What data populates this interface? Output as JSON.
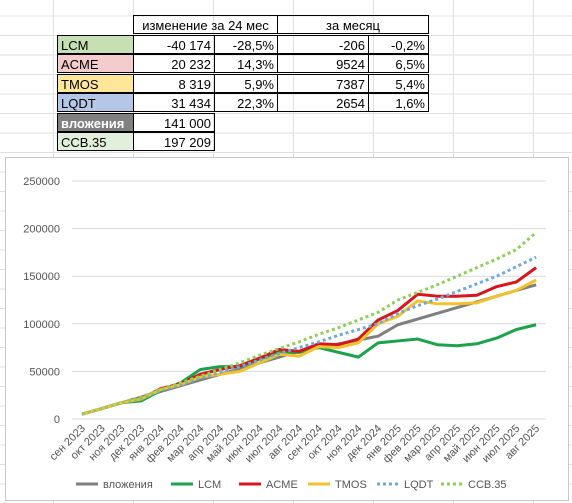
{
  "table": {
    "header": [
      "изменение за 24 мес",
      "за месяц"
    ],
    "rows": [
      {
        "label": "LCM",
        "color": "#c6e0b4",
        "text_color": "#000000",
        "cells": [
          "-40 174",
          "-28,5%",
          "-206",
          "-0,2%"
        ]
      },
      {
        "label": "ACME",
        "color": "#f4cccc",
        "text_color": "#000000",
        "cells": [
          "20 232",
          "14,3%",
          "9524",
          "6,5%"
        ]
      },
      {
        "label": "TMOS",
        "color": "#ffe699",
        "text_color": "#000000",
        "cells": [
          "8 319",
          "5,9%",
          "7387",
          "5,4%"
        ]
      },
      {
        "label": "LQDT",
        "color": "#b4c7e7",
        "text_color": "#000000",
        "cells": [
          "31 434",
          "22,3%",
          "2654",
          "1,6%"
        ]
      },
      {
        "label": "вложения",
        "color": "#808080",
        "text_color": "#ffffff",
        "cells": [
          "141 000"
        ]
      },
      {
        "label": "ССВ.35",
        "color": "#e2efda",
        "text_color": "#000000",
        "cells": [
          "197 209"
        ]
      }
    ]
  },
  "chart_data": {
    "type": "line",
    "categories": [
      "сен 2023",
      "окт 2023",
      "ноя 2023",
      "дек 2023",
      "янв 2024",
      "фев 2024",
      "мар 2024",
      "апр 2024",
      "май 2024",
      "июн 2024",
      "июл 2024",
      "авг 2024",
      "сен 2024",
      "окт 2024",
      "ноя 2024",
      "дек 2024",
      "янв 2025",
      "фев 2025",
      "мар 2025",
      "апр 2025",
      "май 2025",
      "июн 2025",
      "июл 2025",
      "авг 2025"
    ],
    "ylim": [
      0,
      250000
    ],
    "yticks": [
      0,
      50000,
      100000,
      150000,
      200000,
      250000
    ],
    "series": [
      {
        "name": "вложения",
        "color": "#7f7f7f",
        "dashed": false,
        "values": [
          5000,
          11000,
          17000,
          23000,
          29000,
          35000,
          41000,
          47000,
          53000,
          59000,
          65000,
          71000,
          75000,
          79000,
          83000,
          87000,
          99000,
          105000,
          111000,
          117000,
          123000,
          129000,
          135000,
          141000
        ]
      },
      {
        "name": "LCM",
        "color": "#1aa34a",
        "dashed": false,
        "values": [
          5000,
          11000,
          17000,
          19000,
          30000,
          38000,
          52000,
          55000,
          55000,
          63000,
          70000,
          70000,
          75000,
          70000,
          65000,
          80000,
          82000,
          84000,
          78000,
          77000,
          79000,
          85000,
          94000,
          99000
        ]
      },
      {
        "name": "ACME",
        "color": "#d9141b",
        "dashed": false,
        "values": [
          5000,
          11000,
          17000,
          21000,
          32000,
          37000,
          47000,
          52000,
          56000,
          64000,
          73000,
          71000,
          79000,
          78000,
          84000,
          104000,
          114000,
          131000,
          129000,
          129000,
          130000,
          139000,
          144000,
          159000
        ]
      },
      {
        "name": "TMOS",
        "color": "#f2c12e",
        "dashed": false,
        "values": [
          5000,
          11000,
          17000,
          21000,
          31000,
          36000,
          44000,
          47000,
          50000,
          59000,
          68000,
          66000,
          76000,
          75000,
          80000,
          100000,
          108000,
          124000,
          121000,
          121000,
          122000,
          129000,
          135000,
          146000
        ]
      },
      {
        "name": "LQDT",
        "color": "#6fa8dc",
        "dashed": true,
        "values": [
          5000,
          11000,
          17000,
          22000,
          30000,
          36000,
          43000,
          49000,
          55000,
          62000,
          69000,
          75000,
          81000,
          88000,
          94000,
          100000,
          111000,
          119000,
          126000,
          134000,
          142000,
          150000,
          160000,
          170000
        ]
      },
      {
        "name": "ССВ.35",
        "color": "#8fce5a",
        "dashed": true,
        "values": [
          5000,
          11000,
          17000,
          23000,
          31000,
          38000,
          45000,
          52000,
          59000,
          67000,
          74000,
          81000,
          89000,
          96000,
          104000,
          112000,
          125000,
          133000,
          141000,
          150000,
          159000,
          168000,
          178000,
          196000
        ]
      }
    ],
    "grid": true,
    "legend": "bottom"
  }
}
